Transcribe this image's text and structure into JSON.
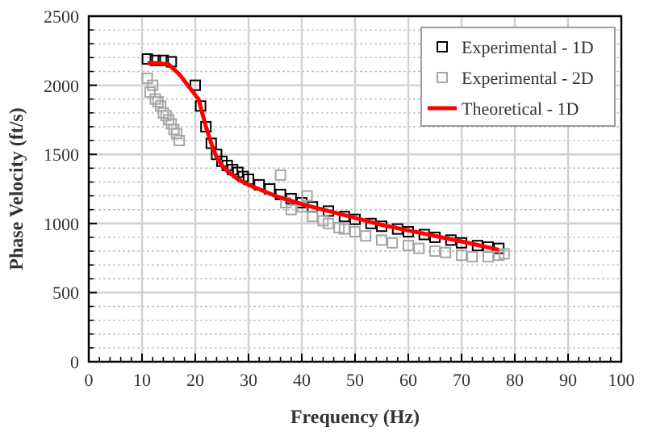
{
  "chart_data": {
    "type": "scatter",
    "xlabel": "Frequency (Hz)",
    "ylabel": "Phase Velocity (ft/s)",
    "xlim": [
      0,
      100
    ],
    "ylim": [
      0,
      2500
    ],
    "xticks": [
      0,
      10,
      20,
      30,
      40,
      50,
      60,
      70,
      80,
      90,
      100
    ],
    "yticks": [
      0,
      500,
      1000,
      1500,
      2000,
      2500
    ],
    "grid": true,
    "legend": "top right",
    "marker": "square",
    "series": [
      {
        "name": "Experimental - 1D",
        "color": "#000000",
        "x": [
          11,
          12.5,
          14,
          15.5,
          20,
          21,
          22,
          23,
          24,
          25,
          26,
          27,
          28,
          29,
          30,
          32,
          34,
          36,
          38,
          40,
          42,
          45,
          48,
          50,
          53,
          55,
          58,
          60,
          63,
          65,
          68,
          70,
          73,
          75,
          77
        ],
        "values": [
          2190,
          2180,
          2180,
          2170,
          2000,
          1850,
          1700,
          1580,
          1500,
          1450,
          1420,
          1390,
          1370,
          1340,
          1320,
          1280,
          1250,
          1210,
          1180,
          1150,
          1120,
          1090,
          1050,
          1030,
          1000,
          980,
          960,
          940,
          920,
          900,
          880,
          860,
          840,
          830,
          820
        ]
      },
      {
        "name": "Experimental - 2D",
        "color": "#a6a6a6",
        "x": [
          11,
          11.5,
          12,
          12.5,
          13,
          13.5,
          14,
          14.5,
          15,
          15.5,
          16,
          16.5,
          17,
          36,
          37,
          38,
          40,
          41,
          42,
          44,
          45,
          47,
          48,
          50,
          52,
          55,
          57,
          60,
          62,
          65,
          67,
          70,
          72,
          75,
          77,
          78
        ],
        "values": [
          2050,
          1950,
          2000,
          1900,
          1880,
          1850,
          1800,
          1780,
          1750,
          1720,
          1680,
          1650,
          1600,
          1350,
          1150,
          1100,
          1120,
          1200,
          1050,
          1020,
          1000,
          970,
          960,
          940,
          910,
          880,
          860,
          840,
          820,
          800,
          790,
          770,
          760,
          760,
          770,
          780
        ]
      },
      {
        "name": "Theoretical - 1D",
        "type": "line",
        "color": "#ff0000",
        "marker": "none",
        "x": [
          11,
          13,
          15,
          17,
          19,
          20.6,
          22,
          23,
          24,
          25,
          26,
          28,
          30,
          35,
          40,
          45,
          50,
          55,
          60,
          65,
          70,
          77
        ],
        "values": [
          2160,
          2160,
          2150,
          2080,
          1980,
          1900,
          1700,
          1580,
          1480,
          1420,
          1380,
          1320,
          1280,
          1200,
          1140,
          1090,
          1040,
          990,
          950,
          910,
          870,
          810
        ]
      }
    ]
  }
}
